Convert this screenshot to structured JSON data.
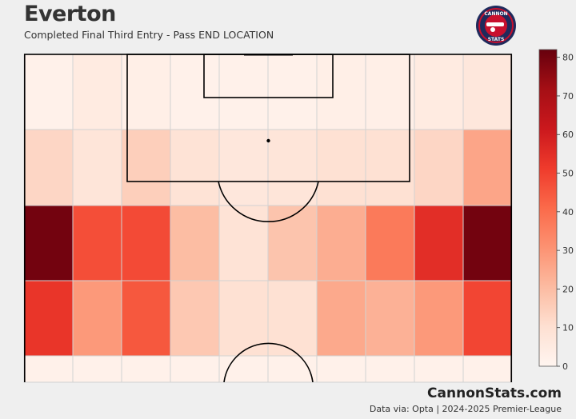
{
  "header": {
    "team": "Everton",
    "subtitle": "Completed Final Third Entry - Pass END LOCATION"
  },
  "logo": {
    "top_text": "CANNON",
    "bottom_text": "STATS"
  },
  "footer": {
    "brand": "CannonStats.com",
    "source": "Data via: Opta | 2024-2025 Premier-League"
  },
  "colors": {
    "low": "#fff5f0",
    "mid": "#fb6a4a",
    "high": "#67000d",
    "background": "#efefef",
    "line": "#000000"
  },
  "chart_data": {
    "type": "heatmap",
    "title": "",
    "xlabel": "",
    "ylabel": "",
    "columns": 10,
    "rows": 5,
    "values": [
      [
        2,
        5,
        3,
        2,
        2,
        2,
        3,
        3,
        5,
        7
      ],
      [
        13,
        8,
        15,
        9,
        7,
        8,
        10,
        10,
        13,
        26
      ],
      [
        80,
        47,
        48,
        20,
        9,
        18,
        24,
        37,
        55,
        80
      ],
      [
        53,
        29,
        45,
        17,
        10,
        10,
        25,
        23,
        29,
        49
      ],
      [
        2,
        2,
        2,
        2,
        2,
        2,
        2,
        2,
        2,
        2
      ]
    ],
    "colorbar": {
      "min": 0,
      "max": 82,
      "ticks": [
        0,
        10,
        20,
        30,
        40,
        50,
        60,
        70,
        80
      ],
      "tick_labels": [
        "0",
        "10",
        "20",
        "30",
        "40",
        "50",
        "60",
        "70",
        "80"
      ]
    }
  }
}
